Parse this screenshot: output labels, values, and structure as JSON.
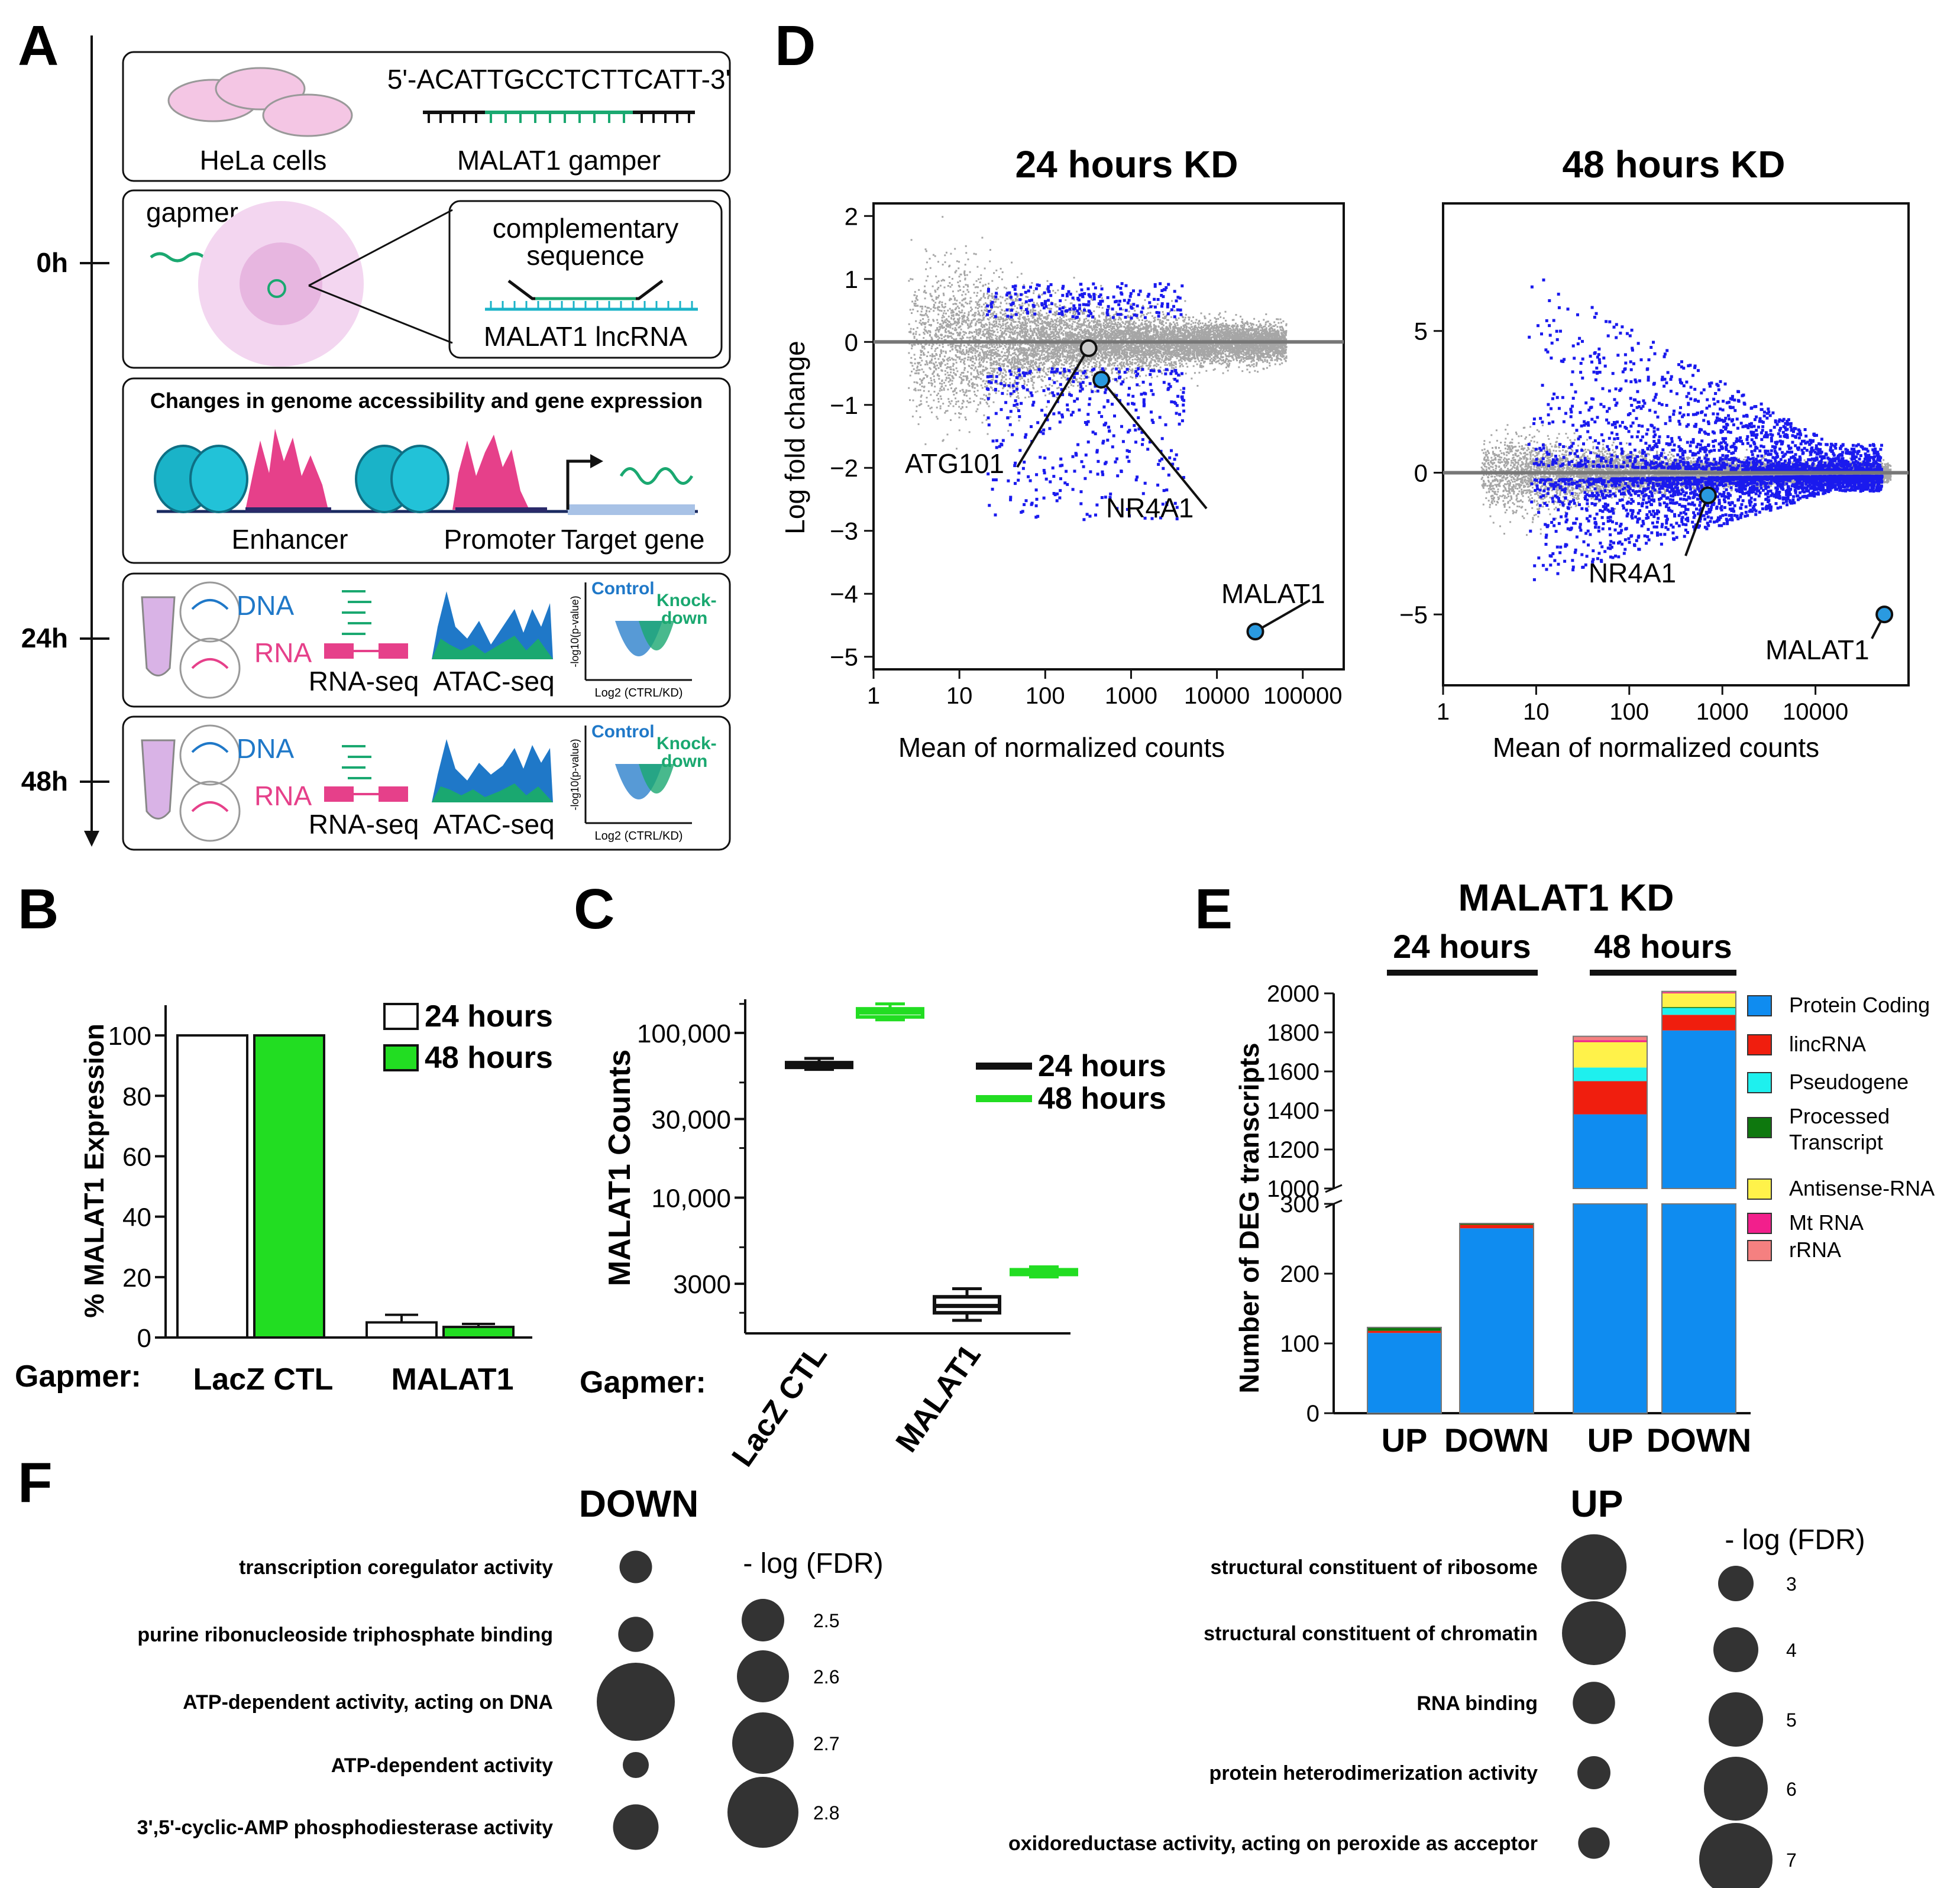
{
  "panel_labels": [
    "A",
    "B",
    "C",
    "D",
    "E",
    "F"
  ],
  "panelA": {
    "timeline": [
      "0h",
      "24h",
      "48h"
    ],
    "box1": {
      "sequence": "5'-ACATTGCCTCTTCATT-3'",
      "cells_label": "HeLa cells",
      "gapmer_label": "MALAT1 gamper"
    },
    "box2": {
      "gapmer": "gapmer",
      "complementary": "complementary",
      "sequence": "sequence",
      "lncrna": "MALAT1 lncRNA"
    },
    "box3": {
      "title": "Changes in genome accessibility and gene expression",
      "enhancer": "Enhancer",
      "promoter": "Promoter",
      "target": "Target gene"
    },
    "box4": {
      "dna": "DNA",
      "rna": "RNA",
      "rnaseq": "RNA-seq",
      "atacseq": "ATAC-seq",
      "control": "Control",
      "kd1": "Knock-",
      "kd2": "down",
      "ylabel": "-log10(p-value)",
      "xlabel": "Log2 (CTRL/KD)"
    },
    "colors": {
      "blue": "#1f78c8",
      "pink": "#e6408a",
      "green": "#1aa870",
      "cyan": "#1ab3c8"
    }
  },
  "panelB": {
    "chart_data": {
      "type": "bar",
      "ylabel": "% MALAT1 Expression",
      "xprefix": "Gapmer:",
      "categories": [
        "LacZ CTL",
        "MALAT1"
      ],
      "series": [
        {
          "name": "24 hours",
          "values": [
            100,
            5
          ],
          "errors": [
            0,
            2.5
          ],
          "color": "#ffffff"
        },
        {
          "name": "48 hours",
          "values": [
            100,
            3.5
          ],
          "errors": [
            0,
            1
          ],
          "color": "#22dd22"
        }
      ],
      "ylim": [
        0,
        110
      ],
      "yticks": [
        0,
        20,
        40,
        60,
        80,
        100
      ]
    }
  },
  "panelC": {
    "chart_data": {
      "type": "box",
      "ylabel": "MALAT1 Counts",
      "xprefix": "Gapmer:",
      "categories": [
        "LacZ CTL",
        "MALAT1"
      ],
      "series": [
        {
          "name": "24 hours",
          "color": "#111111",
          "boxes": [
            {
              "min": 60000,
              "q1": 62000,
              "median": 64000,
              "q3": 66000,
              "max": 70000
            },
            {
              "min": 1800,
              "q1": 2000,
              "median": 2200,
              "q3": 2500,
              "max": 2800
            }
          ]
        },
        {
          "name": "48 hours",
          "color": "#22dd22",
          "boxes": [
            {
              "min": 120000,
              "q1": 125000,
              "median": 133000,
              "q3": 140000,
              "max": 150000
            },
            {
              "min": 3300,
              "q1": 3450,
              "median": 3550,
              "q3": 3650,
              "max": 3800
            }
          ]
        }
      ],
      "yscale": "log",
      "ylim": [
        1500,
        160000
      ],
      "yticks": [
        {
          "value": 3000,
          "label": "3000"
        },
        {
          "value": 10000,
          "label": "10,000"
        },
        {
          "value": 30000,
          "label": "30,000"
        },
        {
          "value": 100000,
          "label": "100,000"
        }
      ]
    }
  },
  "panelD": {
    "chart_data": [
      {
        "type": "scatter",
        "title": "24 hours KD",
        "xlabel": "Mean of normalized counts",
        "ylabel": "Log fold change",
        "xscale": "log",
        "xlim": [
          1,
          300000
        ],
        "ylim": [
          -5.2,
          2.2
        ],
        "xticks": [
          {
            "value": 1,
            "label": "1"
          },
          {
            "value": 10,
            "label": "10"
          },
          {
            "value": 100,
            "label": "100"
          },
          {
            "value": 1000,
            "label": "1000"
          },
          {
            "value": 10000,
            "label": "10000"
          },
          {
            "value": 100000,
            "label": "100000"
          }
        ],
        "yticks": [
          2,
          1,
          0,
          -1,
          -2,
          -3,
          -4,
          -5
        ],
        "highlights": [
          {
            "name": "ATG101",
            "x": 320,
            "y": -0.1,
            "color": "#cccccc"
          },
          {
            "name": "NR4A1",
            "x": 450,
            "y": -0.6,
            "color": "#2a9ae0"
          },
          {
            "name": "MALAT1",
            "x": 28000,
            "y": -4.6,
            "color": "#2a9ae0"
          }
        ]
      },
      {
        "type": "scatter",
        "title": "48 hours KD",
        "xlabel": "Mean of normalized counts",
        "ylabel": "",
        "xscale": "log",
        "xlim": [
          1,
          100000
        ],
        "ylim": [
          -7.5,
          9.5
        ],
        "xticks": [
          {
            "value": 1,
            "label": "1"
          },
          {
            "value": 10,
            "label": "10"
          },
          {
            "value": 100,
            "label": "100"
          },
          {
            "value": 1000,
            "label": "1000"
          },
          {
            "value": 10000,
            "label": "10000"
          }
        ],
        "yticks": [
          5,
          0,
          -5
        ],
        "highlights": [
          {
            "name": "NR4A1",
            "x": 700,
            "y": -0.8,
            "color": "#2a9ae0"
          },
          {
            "name": "MALAT1",
            "x": 55000,
            "y": -5.0,
            "color": "#2a9ae0"
          }
        ]
      }
    ]
  },
  "panelE": {
    "chart_data": {
      "type": "stacked-bar",
      "title": "MALAT1 KD",
      "ylabel": "Number of DEG transcripts",
      "groups": [
        "24 hours",
        "48 hours"
      ],
      "categories": [
        "UP",
        "DOWN",
        "UP",
        "DOWN"
      ],
      "series": [
        {
          "name": "Protein Coding",
          "color": "#0f8cf0",
          "values": [
            115,
            265,
            1380,
            1810
          ]
        },
        {
          "name": "lincRNA",
          "color": "#f01e0e",
          "values": [
            3,
            5,
            170,
            80
          ]
        },
        {
          "name": "Pseudogene",
          "color": "#1ef0ee",
          "values": [
            0,
            0,
            70,
            35
          ]
        },
        {
          "name": "Processed Transcript",
          "color": "#0e780e",
          "values": [
            5,
            2,
            0,
            5
          ]
        },
        {
          "name": "Antisense-RNA",
          "color": "#fff24a",
          "values": [
            0,
            0,
            130,
            70
          ]
        },
        {
          "name": "Mt RNA",
          "color": "#f21f8c",
          "values": [
            0,
            0,
            10,
            5
          ]
        },
        {
          "name": "rRNA",
          "color": "#f58080",
          "values": [
            0,
            0,
            20,
            5
          ]
        }
      ],
      "lower_range": [
        0,
        300
      ],
      "upper_range": [
        1000,
        2000
      ],
      "lower_ticks": [
        0,
        100,
        200,
        300
      ],
      "upper_ticks": [
        1000,
        1200,
        1400,
        1600,
        1800,
        2000
      ]
    }
  },
  "panelF": {
    "down": {
      "title": "DOWN",
      "legend_title": "- log (FDR)",
      "legend": [
        2.5,
        2.6,
        2.7,
        2.8
      ],
      "terms": [
        {
          "label": "transcription coregulator activity",
          "value": 2.55
        },
        {
          "label": "purine ribonucleoside triphosphate binding",
          "value": 2.57
        },
        {
          "label": "ATP-dependent activity, acting on DNA",
          "value": 2.9
        },
        {
          "label": "ATP-dependent activity",
          "value": 2.5
        },
        {
          "label": "3',5'-cyclic-AMP phosphodiesterase activity",
          "value": 2.65
        }
      ]
    },
    "up": {
      "title": "UP",
      "legend_title": "- log (FDR)",
      "legend": [
        3,
        4,
        5,
        6,
        7
      ],
      "terms": [
        {
          "label": "structural constituent of ribosome",
          "value": 7.5
        },
        {
          "label": "structural constituent of chromatin",
          "value": 7.3
        },
        {
          "label": "RNA binding",
          "value": 4.5
        },
        {
          "label": "protein heterodimerization activity",
          "value": 3.3
        },
        {
          "label": "oxidoreductase activity, acting on peroxide as acceptor",
          "value": 3.1
        }
      ]
    }
  }
}
